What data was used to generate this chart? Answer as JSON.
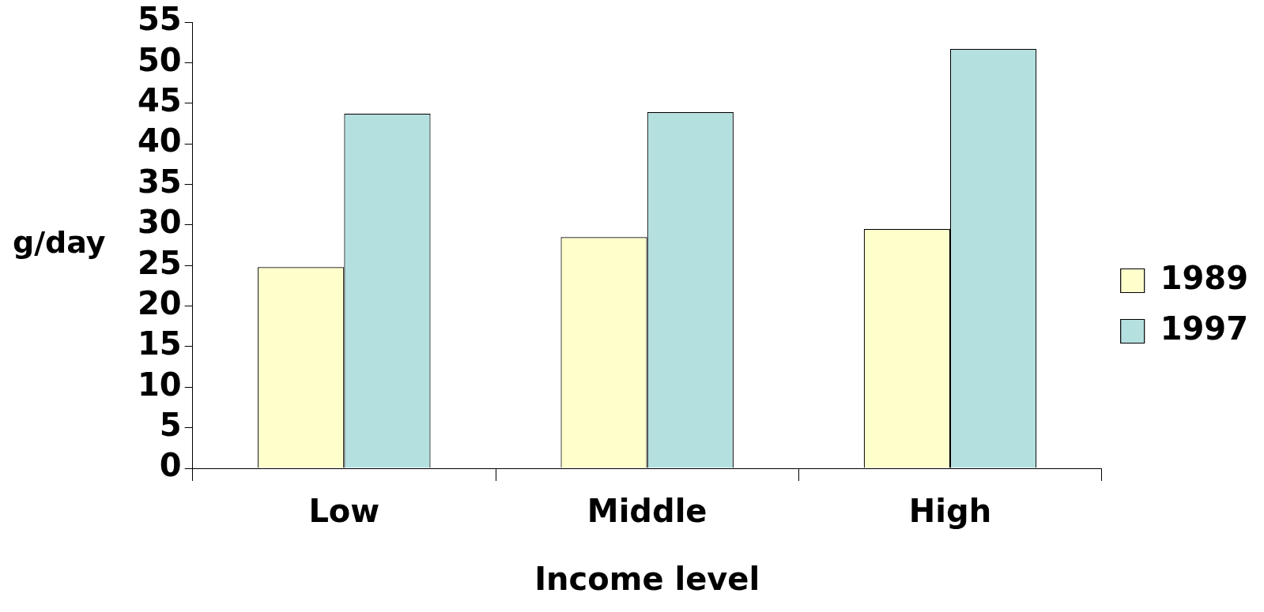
{
  "chart_data": {
    "type": "bar",
    "xlabel": "Income level",
    "ylabel": "g/day",
    "categories": [
      "Low",
      "Middle",
      "High"
    ],
    "series": [
      {
        "name": "1989",
        "color": "#ffffcc",
        "values": [
          24.8,
          28.5,
          29.5
        ]
      },
      {
        "name": "1997",
        "color": "#b4e0e0",
        "values": [
          43.7,
          43.9,
          51.7
        ]
      }
    ],
    "ylim": [
      0,
      55
    ],
    "yticks": [
      0,
      5,
      10,
      15,
      20,
      25,
      30,
      35,
      40,
      45,
      50,
      55
    ],
    "grid": false,
    "legend": "right"
  }
}
